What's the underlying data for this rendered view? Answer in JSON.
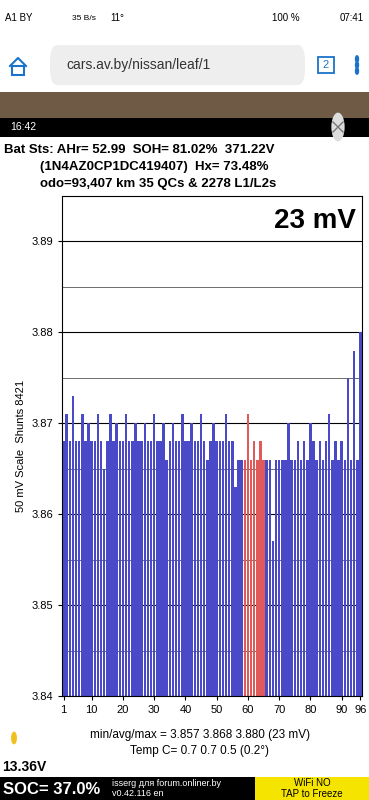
{
  "chart_data": {
    "type": "bar",
    "x": [
      1,
      2,
      3,
      4,
      5,
      6,
      7,
      8,
      9,
      10,
      11,
      12,
      13,
      14,
      15,
      16,
      17,
      18,
      19,
      20,
      21,
      22,
      23,
      24,
      25,
      26,
      27,
      28,
      29,
      30,
      31,
      32,
      33,
      34,
      35,
      36,
      37,
      38,
      39,
      40,
      41,
      42,
      43,
      44,
      45,
      46,
      47,
      48,
      49,
      50,
      51,
      52,
      53,
      54,
      55,
      56,
      57,
      58,
      59,
      60,
      61,
      62,
      63,
      64,
      65,
      66,
      67,
      68,
      69,
      70,
      71,
      72,
      73,
      74,
      75,
      76,
      77,
      78,
      79,
      80,
      81,
      82,
      83,
      84,
      85,
      86,
      87,
      88,
      89,
      90,
      91,
      92,
      93,
      94,
      95,
      96
    ],
    "values": [
      3.868,
      3.871,
      3.868,
      3.873,
      3.868,
      3.868,
      3.871,
      3.868,
      3.87,
      3.868,
      3.868,
      3.871,
      3.868,
      3.865,
      3.868,
      3.871,
      3.868,
      3.87,
      3.868,
      3.868,
      3.871,
      3.868,
      3.868,
      3.87,
      3.868,
      3.868,
      3.87,
      3.868,
      3.868,
      3.871,
      3.868,
      3.868,
      3.87,
      3.866,
      3.868,
      3.87,
      3.868,
      3.868,
      3.871,
      3.868,
      3.868,
      3.87,
      3.868,
      3.868,
      3.871,
      3.868,
      3.866,
      3.868,
      3.87,
      3.868,
      3.868,
      3.868,
      3.871,
      3.868,
      3.868,
      3.863,
      3.866,
      3.866,
      3.866,
      3.871,
      3.866,
      3.868,
      3.866,
      3.868,
      3.866,
      3.866,
      3.866,
      3.857,
      3.866,
      3.866,
      3.866,
      3.866,
      3.87,
      3.866,
      3.866,
      3.868,
      3.866,
      3.868,
      3.866,
      3.87,
      3.868,
      3.866,
      3.868,
      3.866,
      3.868,
      3.871,
      3.866,
      3.868,
      3.866,
      3.868,
      3.866,
      3.875,
      3.866,
      3.878,
      3.866,
      3.88
    ],
    "colors": [
      "#4a4ac8",
      "#4a4ac8",
      "#4a4ac8",
      "#4a4ac8",
      "#4a4ac8",
      "#4a4ac8",
      "#4a4ac8",
      "#4a4ac8",
      "#4a4ac8",
      "#4a4ac8",
      "#4a4ac8",
      "#4a4ac8",
      "#4a4ac8",
      "#4a4ac8",
      "#4a4ac8",
      "#4a4ac8",
      "#4a4ac8",
      "#4a4ac8",
      "#4a4ac8",
      "#4a4ac8",
      "#4a4ac8",
      "#4a4ac8",
      "#4a4ac8",
      "#4a4ac8",
      "#4a4ac8",
      "#4a4ac8",
      "#4a4ac8",
      "#4a4ac8",
      "#4a4ac8",
      "#4a4ac8",
      "#4a4ac8",
      "#4a4ac8",
      "#4a4ac8",
      "#4a4ac8",
      "#4a4ac8",
      "#4a4ac8",
      "#4a4ac8",
      "#4a4ac8",
      "#4a4ac8",
      "#4a4ac8",
      "#4a4ac8",
      "#4a4ac8",
      "#4a4ac8",
      "#4a4ac8",
      "#4a4ac8",
      "#4a4ac8",
      "#4a4ac8",
      "#4a4ac8",
      "#4a4ac8",
      "#4a4ac8",
      "#4a4ac8",
      "#4a4ac8",
      "#4a4ac8",
      "#4a4ac8",
      "#4a4ac8",
      "#4a4ac8",
      "#4a4ac8",
      "#4a4ac8",
      "#e05a5a",
      "#e05a5a",
      "#e05a5a",
      "#e05a5a",
      "#e05a5a",
      "#e05a5a",
      "#e05a5a",
      "#4a4ac8",
      "#4a4ac8",
      "#4a4ac8",
      "#4a4ac8",
      "#4a4ac8",
      "#4a4ac8",
      "#4a4ac8",
      "#4a4ac8",
      "#4a4ac8",
      "#4a4ac8",
      "#4a4ac8",
      "#4a4ac8",
      "#4a4ac8",
      "#4a4ac8",
      "#4a4ac8",
      "#4a4ac8",
      "#4a4ac8",
      "#4a4ac8",
      "#4a4ac8",
      "#4a4ac8",
      "#4a4ac8",
      "#4a4ac8",
      "#4a4ac8",
      "#4a4ac8",
      "#4a4ac8",
      "#4a4ac8",
      "#4a4ac8",
      "#4a4ac8",
      "#4a4ac8",
      "#4a4ac8",
      "#4a4ac8"
    ],
    "xlim": [
      0.5,
      96.5
    ],
    "xticks": [
      1,
      10,
      20,
      30,
      40,
      50,
      60,
      70,
      80,
      90,
      96
    ],
    "ylim": [
      3.84,
      3.895
    ],
    "yticks": [
      3.84,
      3.85,
      3.86,
      3.87,
      3.88,
      3.89
    ],
    "y_label": "50 mV Scale  Shunts 8421",
    "grid": true,
    "annotations": [
      "23 mV",
      "min/avg/max = 3.857 3.868 3.880 (23 mV)",
      "Temp C= 0.7 0.7 0.5 (0.2°)"
    ]
  },
  "screen": {
    "status_left": [
      "A1 BY",
      "35 B/s",
      "11°"
    ],
    "status_right": [
      "100 %",
      "07:41"
    ],
    "url": "cars.av.by/nissan/leaf/1",
    "tabs": "2",
    "app_time": "16:42",
    "header": [
      "Bat Sts: AHr= 52.99  SOH= 81.02%  371.22V",
      "(1N4AZ0CP1DC419407)  Hx= 73.48%",
      "odo=93,407 km 35 QCs & 2278 L1/L2s"
    ],
    "aux_voltage": "13.36V",
    "soc": "SOC= 37.0%",
    "watermark": "isserg для forum.onliner.by",
    "version": "v0.42.116 en",
    "wifi": "WiFi NO",
    "freeze": "TAP to Freeze"
  }
}
